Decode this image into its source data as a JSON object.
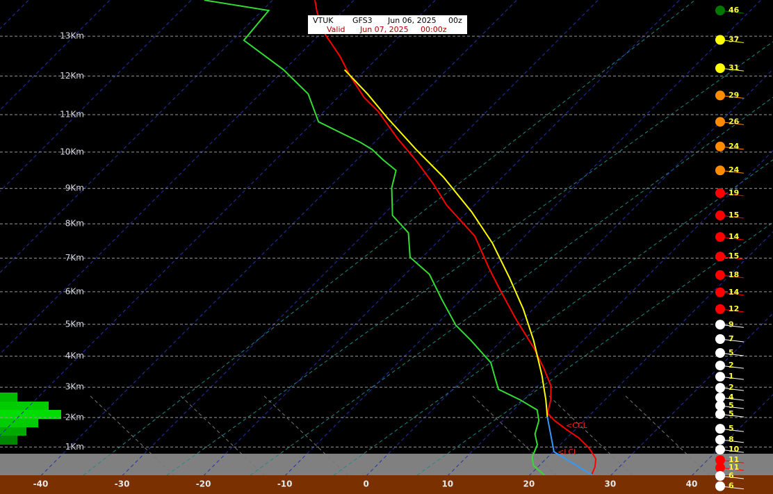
{
  "chart_data": {
    "type": "skewt",
    "header": {
      "station": "VTUK",
      "model": "GFS3",
      "run_date": "Jun 06, 2025",
      "run_time": "00z",
      "valid_label": "Valid",
      "valid_date": "Jun 07, 2025",
      "valid_time": "00:00z"
    },
    "xlim": [
      -45,
      50
    ],
    "xticks": [
      -40,
      -30,
      -20,
      -10,
      0,
      10,
      20,
      30,
      40
    ],
    "ylim": [
      0,
      14
    ],
    "yticks": [
      {
        "value": 1,
        "label": "1Km"
      },
      {
        "value": 2,
        "label": "2Km"
      },
      {
        "value": 3,
        "label": "3Km"
      },
      {
        "value": 4,
        "label": "4Km"
      },
      {
        "value": 5,
        "label": "5Km"
      },
      {
        "value": 6,
        "label": "6Km"
      },
      {
        "value": 7,
        "label": "7Km"
      },
      {
        "value": 8,
        "label": "8Km"
      },
      {
        "value": 9,
        "label": "9Km"
      },
      {
        "value": 10,
        "label": "10Km"
      },
      {
        "value": 11,
        "label": "11Km"
      },
      {
        "value": 12,
        "label": "12Km"
      },
      {
        "value": 13,
        "label": "13Km"
      }
    ],
    "grid": true,
    "series": [
      {
        "color": "#ff0000",
        "x": [
          -64.8,
          -63.0,
          -59.2,
          -54.9,
          -51.3,
          -46.8,
          -43.4,
          -37.5,
          -32.8,
          -27.6,
          -23.4,
          -16.1,
          -10.6,
          -6.7,
          -0.8,
          4.8,
          8.6,
          11.6,
          13.3,
          14.6,
          16.3,
          19.3,
          21.4,
          24.0,
          26.1,
          27.0,
          27.6
        ],
        "values": [
          13.88,
          13.58,
          13.03,
          12.51,
          12.02,
          11.45,
          11.09,
          10.35,
          9.79,
          9.12,
          8.53,
          7.64,
          6.73,
          6.1,
          5.15,
          4.27,
          3.61,
          3.05,
          2.59,
          2.14,
          1.9,
          1.55,
          1.32,
          0.96,
          0.6,
          0.32,
          0.03
        ]
      },
      {
        "color": "#33dd33",
        "x": [
          -78.4,
          -69.2,
          -68.6,
          -60.1,
          -54.1,
          -49.4,
          -45.6,
          -41.7,
          -39.4,
          -36.8,
          -33.9,
          -32.3,
          -28.8,
          -24.7,
          -21.5,
          -17.0,
          -12.5,
          -7.5,
          -3.8,
          1.4,
          3.9,
          5.6,
          9.5,
          12.9,
          14.4,
          15.6,
          17.2,
          18.1,
          19.3,
          21.8
        ],
        "values": [
          13.88,
          13.63,
          12.9,
          12.16,
          11.54,
          10.81,
          10.54,
          10.26,
          10.07,
          9.79,
          9.5,
          9.02,
          8.24,
          7.74,
          7.03,
          6.52,
          5.78,
          4.97,
          4.5,
          3.79,
          3.28,
          2.93,
          2.59,
          2.25,
          1.9,
          1.44,
          1.08,
          0.65,
          0.36,
          0.03
        ]
      },
      {
        "color": "#ffff00",
        "x": [
          -52.6,
          -46.8,
          -41.3,
          -34.0,
          -27.2,
          -19.5,
          -13.1,
          -6.7,
          -1.2,
          3.9,
          9.2,
          12.7,
          15.0
        ],
        "values": [
          12.16,
          11.54,
          10.9,
          10.07,
          9.31,
          8.34,
          7.44,
          6.41,
          5.47,
          4.5,
          3.39,
          2.59,
          2.02
        ]
      },
      {
        "color": "#3399ff",
        "x": [
          15.0,
          20.1,
          27.7
        ],
        "values": [
          2.02,
          0.84,
          0.03
        ]
      }
    ],
    "annotations": [
      "<CCL",
      "<LCL"
    ],
    "wind": {
      "speeds": [
        46,
        37,
        31,
        29,
        26,
        24,
        24,
        19,
        15,
        14,
        15,
        18,
        14,
        12,
        9,
        7,
        5,
        2,
        1,
        2,
        4,
        5,
        5,
        5,
        8,
        10,
        11,
        11,
        6,
        6
      ],
      "heights": [
        13.63,
        12.91,
        12.2,
        11.5,
        10.81,
        10.15,
        9.5,
        8.87,
        8.24,
        7.62,
        7.05,
        6.5,
        5.98,
        5.47,
        4.99,
        4.54,
        4.1,
        3.7,
        3.34,
        2.98,
        2.66,
        2.39,
        2.11,
        1.62,
        1.25,
        0.91,
        0.55,
        0.29,
        0.0,
        -0.36
      ],
      "colors": [
        "#007700",
        "#ffff00",
        "#ffff00",
        "#ff8c00",
        "#ff8c00",
        "#ff8c00",
        "#ff8c00",
        "#ff0000",
        "#ff0000",
        "#ff0000",
        "#ff0000",
        "#ff0000",
        "#ff0000",
        "#ff0000",
        "#ffffff",
        "#ffffff",
        "#ffffff",
        "#ffffff",
        "#ffffff",
        "#ffffff",
        "#ffffff",
        "#ffffff",
        "#ffffff",
        "#ffffff",
        "#ffffff",
        "#ffffff",
        "#ff0000",
        "#ff0000",
        "#ffffff",
        "#ffffff"
      ]
    }
  }
}
